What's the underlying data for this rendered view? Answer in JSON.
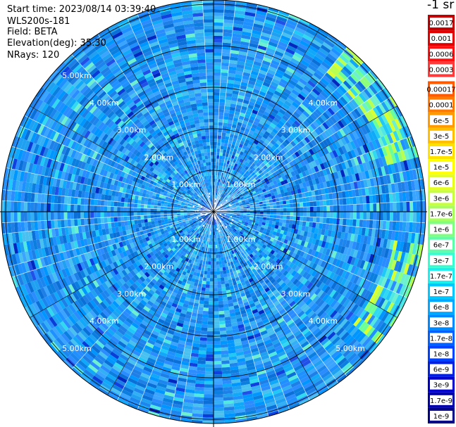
{
  "info": {
    "start_time": "Start time: 2023/08/14 03:39:40",
    "instrument": "WLS200s-181",
    "field": "Field: BETA",
    "elevation": "Elevation(deg): 35.30",
    "nrays": "NRays: 120"
  },
  "chart_data": {
    "type": "heatmap",
    "projection": "polar-ppi",
    "rings_km": [
      1,
      2,
      3,
      4,
      5
    ],
    "ring_labels": [
      "1.00km",
      "2.00km",
      "3.00km",
      "4.00km",
      "5.00km"
    ],
    "max_range_km": 5.1,
    "n_rays": 120,
    "colorbar": {
      "unit_label": "-1 sr",
      "ticks": [
        "0.0017",
        "0.001",
        "0.0006",
        "0.0003",
        "0.00017",
        "0.0001",
        "6e-5",
        "3e-5",
        "1.7e-5",
        "1e-5",
        "6e-6",
        "3e-6",
        "1.7e-6",
        "1e-6",
        "6e-7",
        "3e-7",
        "1.7e-7",
        "1e-7",
        "6e-8",
        "3e-8",
        "1.7e-8",
        "1e-8",
        "6e-9",
        "3e-9",
        "1.7e-9",
        "1e-9"
      ],
      "colors": [
        "#c00000",
        "#e00000",
        "#ff1010",
        "#ff3a3a",
        "#ff5a00",
        "#ff7a00",
        "#ff9a00",
        "#ffbf00",
        "#ffe000",
        "#ffff00",
        "#e6ff1a",
        "#c8ff3c",
        "#a8ff5a",
        "#7fff7f",
        "#5affa8",
        "#35ffd0",
        "#18f0f0",
        "#00c8ff",
        "#00a8ff",
        "#0088ff",
        "#0060ff",
        "#0040ff",
        "#0020e0",
        "#0000cc",
        "#0000aa",
        "#000088"
      ],
      "colors_alt": [
        "#800000",
        "#a00000",
        "#d00000",
        "#e00000",
        "#ff1a1a",
        "#ff5a00",
        "#ff7a00",
        "#ff9a00",
        "#ffbf00",
        "#ffe600",
        "#ffff00",
        "#d8ff26",
        "#b0ff4c",
        "#88ff70",
        "#60ff98",
        "#3cffc0",
        "#1ef0e8",
        "#00d0ff",
        "#00b0ff",
        "#0090ff",
        "#0070ff",
        "#0050ff",
        "#0030ff",
        "#0010e8",
        "#0000c0",
        "#00009a"
      ]
    },
    "typical_value_range": [
      "3e-8",
      "1.7e-7"
    ],
    "enhanced_region": "outer ring, east-northeast and east-southeast at 4.5-5 km (1e-7 to 3e-6)"
  }
}
